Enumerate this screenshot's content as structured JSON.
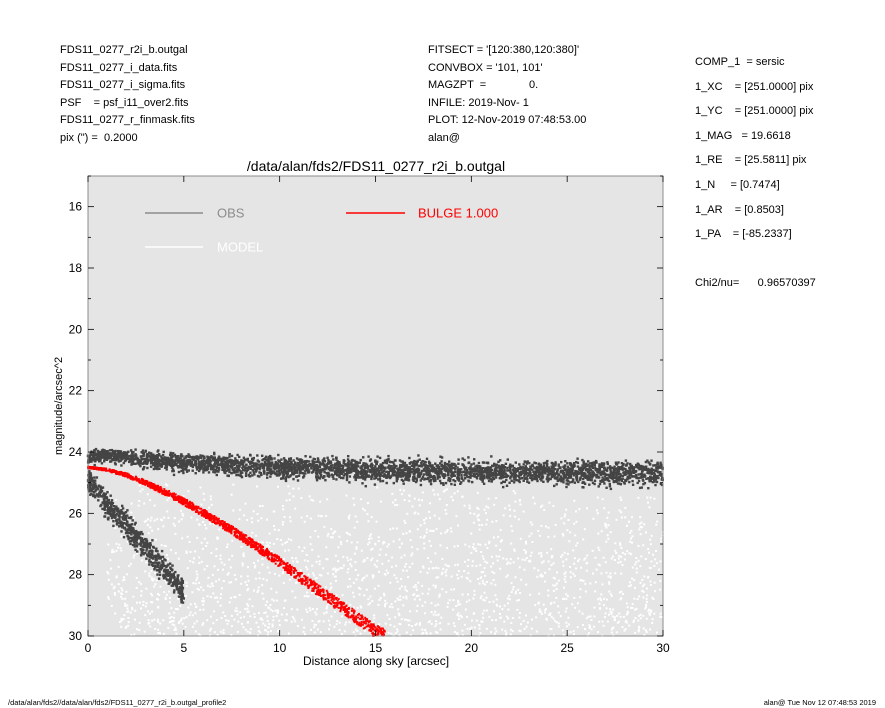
{
  "header_left": [
    "FDS11_0277_r2i_b.outgal",
    "FDS11_0277_i_data.fits",
    "FDS11_0277_i_sigma.fits",
    "PSF    = psf_i11_over2.fits",
    "FDS11_0277_r_finmask.fits",
    "pix (\") =  0.2000"
  ],
  "header_mid": [
    "FITSECT = '[120:380,120:380]'",
    "CONVBOX = '101, 101'",
    "MAGZPT  =              0.",
    "INFILE: 2019-Nov- 1",
    "PLOT: 12-Nov-2019 07:48:53.00",
    "alan@"
  ],
  "header_right": [
    "COMP_1  = sersic",
    "1_XC    = [251.0000] pix",
    "1_YC    = [251.0000] pix",
    "1_MAG   = 19.6618",
    "1_RE    = [25.5811] pix",
    "1_N     = [0.7474]",
    "1_AR    = [0.8503]",
    "1_PA    = [-85.2337]"
  ],
  "chi2": "Chi2/nu=      0.96570397",
  "footer_left": "/data/alan/fds2//data/alan/fds2/FDS11_0277_r2i_b.outgal_profile2",
  "footer_right": "alan@  Tue Nov 12 07:48:53 2019",
  "chart_data": {
    "type": "scatter",
    "title": "/data/alan/fds2/FDS11_0277_r2i_b.outgal",
    "xlabel": "Distance along sky [arcsec]",
    "ylabel": "magnitude/arcsec^2",
    "xlim": [
      0,
      30
    ],
    "ylim": [
      30,
      15
    ],
    "y_inverted": true,
    "xticks": [
      0,
      5,
      10,
      15,
      20,
      25,
      30
    ],
    "yticks": [
      16,
      18,
      20,
      22,
      24,
      26,
      28,
      30
    ],
    "background": "#e5e5e5",
    "legend": [
      {
        "label": "OBS",
        "color": "#8c8c8c"
      },
      {
        "label": "MODEL",
        "color": "#ffffff"
      },
      {
        "label": "BULGE  1.000",
        "color": "#ff0000"
      }
    ],
    "series": [
      {
        "name": "OBS",
        "color": "#444444",
        "band": {
          "x": [
            0,
            1,
            2,
            3,
            5,
            8,
            10,
            15,
            20,
            25,
            30
          ],
          "y_center": [
            24.2,
            24.1,
            24.15,
            24.25,
            24.35,
            24.45,
            24.5,
            24.6,
            24.65,
            24.7,
            24.7
          ],
          "y_halfwidth": [
            0.3,
            0.3,
            0.35,
            0.4,
            0.45,
            0.5,
            0.5,
            0.55,
            0.55,
            0.55,
            0.6
          ]
        },
        "inner_cloud": {
          "x": [
            0,
            1,
            2,
            3,
            4,
            5
          ],
          "y_center": [
            24.9,
            25.7,
            26.4,
            27.1,
            27.8,
            28.6
          ]
        }
      },
      {
        "name": "MODEL",
        "color": "#ffffff",
        "x_range": [
          1,
          30
        ],
        "y_range": [
          25,
          30
        ]
      },
      {
        "name": "BULGE  1.000",
        "color": "#ff0000",
        "x": [
          0,
          1,
          2,
          3,
          4,
          5,
          6,
          7,
          8,
          9,
          10,
          11,
          12,
          13,
          14,
          15,
          15.5
        ],
        "y": [
          24.5,
          24.58,
          24.75,
          25.0,
          25.3,
          25.62,
          25.98,
          26.35,
          26.75,
          27.17,
          27.6,
          28.05,
          28.5,
          28.95,
          29.4,
          29.85,
          30.0
        ],
        "spread": [
          0.05,
          0.08,
          0.12,
          0.16,
          0.2,
          0.22,
          0.24,
          0.26,
          0.28,
          0.3,
          0.32,
          0.34,
          0.36,
          0.38,
          0.4,
          0.42,
          0.42
        ]
      }
    ]
  }
}
